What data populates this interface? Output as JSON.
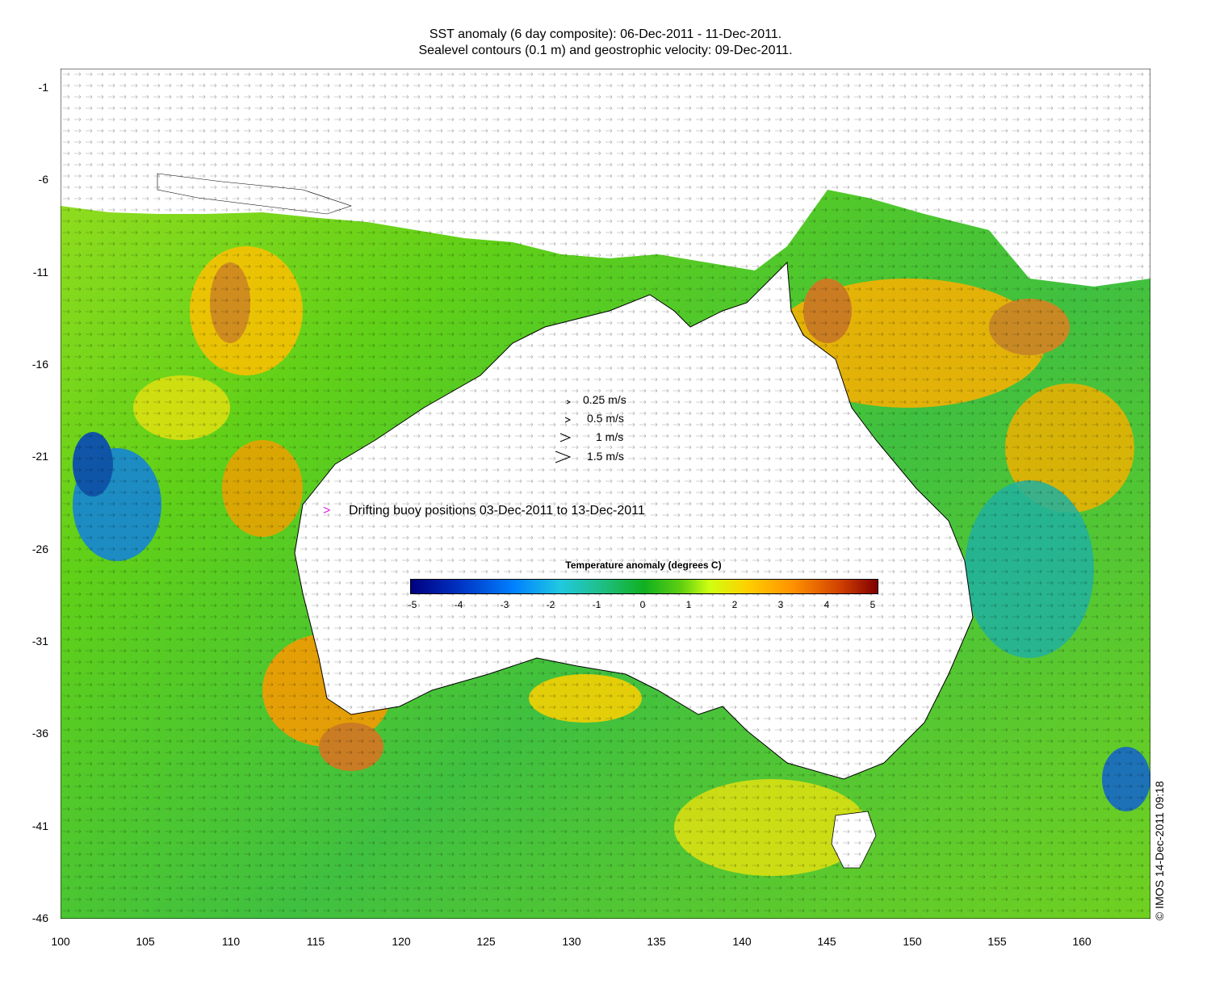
{
  "title": {
    "line1": "SST anomaly (6 day composite): 06-Dec-2011 - 11-Dec-2011.",
    "line2": "Sealevel contours (0.1 m) and geostrophic velocity: 09-Dec-2011."
  },
  "axes": {
    "y_ticks": [
      "-1",
      "-6",
      "-11",
      "-16",
      "-21",
      "-26",
      "-31",
      "-36",
      "-41",
      "-46"
    ],
    "x_ticks": [
      "100",
      "105",
      "110",
      "115",
      "120",
      "125",
      "130",
      "135",
      "140",
      "145",
      "150",
      "155",
      "160"
    ],
    "lon_range": [
      100,
      164
    ],
    "lat_range": [
      -46,
      0
    ]
  },
  "speed_legend": [
    "0.25 m/s",
    "0.5 m/s",
    "1 m/s",
    "1.5 m/s"
  ],
  "buoy_legend": "Drifting buoy positions 03-Dec-2011 to 13-Dec-2011",
  "colorbar": {
    "title": "Temperature anomaly (degrees C)",
    "ticks": [
      "-5",
      "-4",
      "-3",
      "-2",
      "-1",
      "0",
      "1",
      "2",
      "3",
      "4",
      "5"
    ],
    "range": [
      -5,
      5
    ]
  },
  "stamp": "© IMOS 14-Dec-2011 09:18",
  "colors": {
    "land": "#ffffff",
    "ocean_warm": "#ffb000",
    "ocean_neutral": "#40c020",
    "buoy": "#e020e0"
  }
}
